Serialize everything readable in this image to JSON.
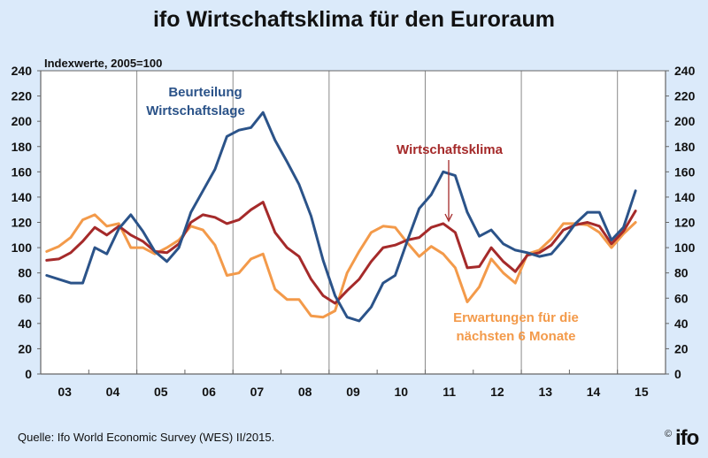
{
  "chart_data": {
    "type": "line",
    "title": "ifo Wirtschaftsklima für den Euroraum",
    "subtitle": "Indexwerte, 2005=100",
    "xlabel": "",
    "ylabel": "",
    "ylim": [
      0,
      240
    ],
    "yticks": [
      0,
      20,
      40,
      60,
      80,
      100,
      120,
      140,
      160,
      180,
      200,
      220,
      240
    ],
    "x_categories": [
      "03",
      "04",
      "05",
      "06",
      "07",
      "08",
      "09",
      "10",
      "11",
      "12",
      "13",
      "14",
      "15"
    ],
    "x_frequency": "quarterly, 2003Q1 - 2015Q2",
    "grid": false,
    "series": [
      {
        "name": "Beurteilung Wirtschaftslage",
        "color": "#2b5389",
        "values": [
          78,
          75,
          72,
          72,
          100,
          95,
          115,
          126,
          113,
          97,
          89,
          100,
          128,
          145,
          162,
          188,
          193,
          195,
          207,
          185,
          168,
          150,
          125,
          90,
          62,
          45,
          42,
          53,
          72,
          78,
          105,
          131,
          142,
          160,
          157,
          128,
          109,
          114,
          103,
          98,
          96,
          93,
          95,
          106,
          119,
          128,
          128,
          106,
          116,
          145
        ]
      },
      {
        "name": "Wirtschaftsklima",
        "color": "#a52a2a",
        "values": [
          90,
          91,
          96,
          105,
          116,
          110,
          117,
          110,
          105,
          97,
          96,
          103,
          120,
          126,
          124,
          119,
          122,
          130,
          136,
          112,
          100,
          93,
          75,
          62,
          56,
          66,
          75,
          89,
          100,
          102,
          106,
          108,
          116,
          119,
          112,
          84,
          85,
          100,
          89,
          81,
          94,
          96,
          102,
          114,
          118,
          120,
          117,
          103,
          113,
          129
        ]
      },
      {
        "name": "Erwartungen für die nächsten 6 Monate",
        "color": "#f39a4a",
        "values": [
          97,
          101,
          108,
          122,
          126,
          117,
          119,
          100,
          100,
          95,
          100,
          106,
          117,
          114,
          102,
          78,
          80,
          91,
          95,
          67,
          59,
          59,
          46,
          45,
          50,
          80,
          97,
          112,
          117,
          116,
          104,
          93,
          101,
          95,
          84,
          57,
          69,
          91,
          80,
          72,
          95,
          98,
          107,
          119,
          119,
          118,
          112,
          100,
          111,
          120
        ]
      }
    ],
    "annotations": [
      {
        "text": "Beurteilung",
        "series": "Beurteilung Wirtschaftslage"
      },
      {
        "text": "Wirtschaftslage",
        "series": "Beurteilung Wirtschaftslage"
      },
      {
        "text": "Wirtschaftsklima",
        "series": "Wirtschaftsklima"
      },
      {
        "text": "Erwartungen für die",
        "series": "Erwartungen für die nächsten 6 Monate"
      },
      {
        "text": "nächsten 6 Monate",
        "series": "Erwartungen für die nächsten 6 Monate"
      }
    ],
    "legend": "inline labels"
  },
  "footer": {
    "source": "Quelle: Ifo World Economic Survey (WES) II/2015.",
    "copyright": "©",
    "logo": "ifo"
  }
}
